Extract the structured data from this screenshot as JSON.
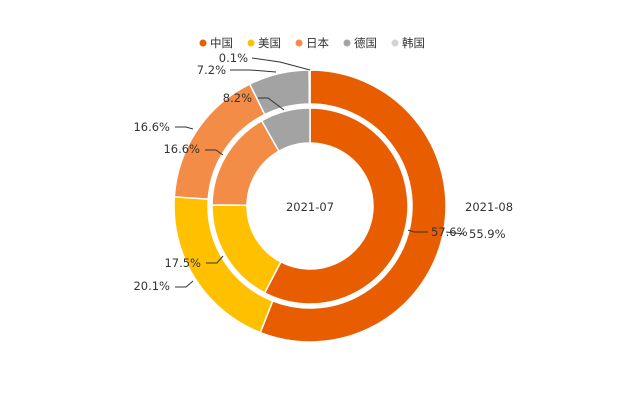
{
  "chart_data": {
    "type": "pie",
    "variant": "nested-donut",
    "legend": [
      {
        "name": "中国",
        "color": "#E85D00"
      },
      {
        "name": "美国",
        "color": "#FFC000"
      },
      {
        "name": "日本",
        "color": "#F28C46"
      },
      {
        "name": "德国",
        "color": "#A3A3A3"
      },
      {
        "name": "韩国",
        "color": "#D4D4D4"
      }
    ],
    "legend_position": "top",
    "series": [
      {
        "name": "2021-08",
        "ring": "outer",
        "values": [
          55.9,
          20.1,
          16.6,
          7.2,
          0.1
        ],
        "labels": [
          "55.9%",
          "20.1%",
          "16.6%",
          "7.2%",
          "0.1%"
        ]
      },
      {
        "name": "2021-07",
        "ring": "inner",
        "values": [
          57.6,
          17.5,
          16.6,
          8.2,
          0.0
        ],
        "labels": [
          "57.6%",
          "17.5%",
          "16.6%",
          "8.2%",
          ""
        ]
      }
    ]
  }
}
